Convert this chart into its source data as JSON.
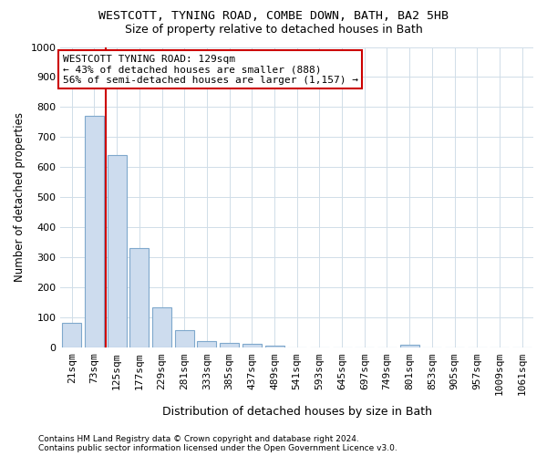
{
  "title": "WESTCOTT, TYNING ROAD, COMBE DOWN, BATH, BA2 5HB",
  "subtitle": "Size of property relative to detached houses in Bath",
  "xlabel": "Distribution of detached houses by size in Bath",
  "ylabel": "Number of detached properties",
  "footnote1": "Contains HM Land Registry data © Crown copyright and database right 2024.",
  "footnote2": "Contains public sector information licensed under the Open Government Licence v3.0.",
  "categories": [
    "21sqm",
    "73sqm",
    "125sqm",
    "177sqm",
    "229sqm",
    "281sqm",
    "333sqm",
    "385sqm",
    "437sqm",
    "489sqm",
    "541sqm",
    "593sqm",
    "645sqm",
    "697sqm",
    "749sqm",
    "801sqm",
    "853sqm",
    "905sqm",
    "957sqm",
    "1009sqm",
    "1061sqm"
  ],
  "bar_values": [
    83,
    770,
    640,
    330,
    133,
    57,
    22,
    17,
    13,
    8,
    0,
    0,
    0,
    0,
    0,
    10,
    0,
    0,
    0,
    0,
    0
  ],
  "bar_facecolor": "#cddcee",
  "bar_edgecolor": "#7fa8cc",
  "grid_color": "#d0dde8",
  "background_color": "#ffffff",
  "vline_color": "#cc0000",
  "vline_x": 1.5,
  "annotation_text": "WESTCOTT TYNING ROAD: 129sqm\n← 43% of detached houses are smaller (888)\n56% of semi-detached houses are larger (1,157) →",
  "annotation_box_edgecolor": "#cc0000",
  "annotation_box_facecolor": "#ffffff",
  "ylim_max": 1000,
  "yticks": [
    0,
    100,
    200,
    300,
    400,
    500,
    600,
    700,
    800,
    900,
    1000
  ],
  "title_fontsize": 9.5,
  "subtitle_fontsize": 9.0,
  "ylabel_fontsize": 8.5,
  "xlabel_fontsize": 9.0,
  "tick_fontsize": 8.0,
  "annot_fontsize": 8.0,
  "footnote_fontsize": 6.5
}
